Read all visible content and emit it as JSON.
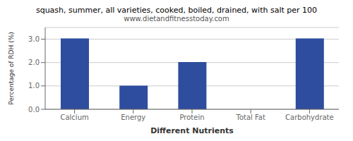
{
  "chart_data": {
    "type": "bar",
    "title": "squash, summer, all varieties, cooked, boiled, drained, with salt per 100",
    "subtitle": "www.dietandfitnesstoday.com",
    "xlabel": "Different Nutrients",
    "ylabel": "Percentage of RDH (%)",
    "categories": [
      "Calcium",
      "Energy",
      "Protein",
      "Total Fat",
      "Carbohydrate"
    ],
    "values": [
      3.03,
      1.01,
      2.02,
      0.0,
      3.03
    ],
    "color": "#2e4d9e",
    "ylim": [
      0,
      3.5
    ],
    "yticks": [
      {
        "value": 0.0,
        "label": "0.0"
      },
      {
        "value": 1.0,
        "label": "1.0"
      },
      {
        "value": 2.0,
        "label": "2.0"
      },
      {
        "value": 3.0,
        "label": "3.0"
      }
    ],
    "grid": true
  }
}
